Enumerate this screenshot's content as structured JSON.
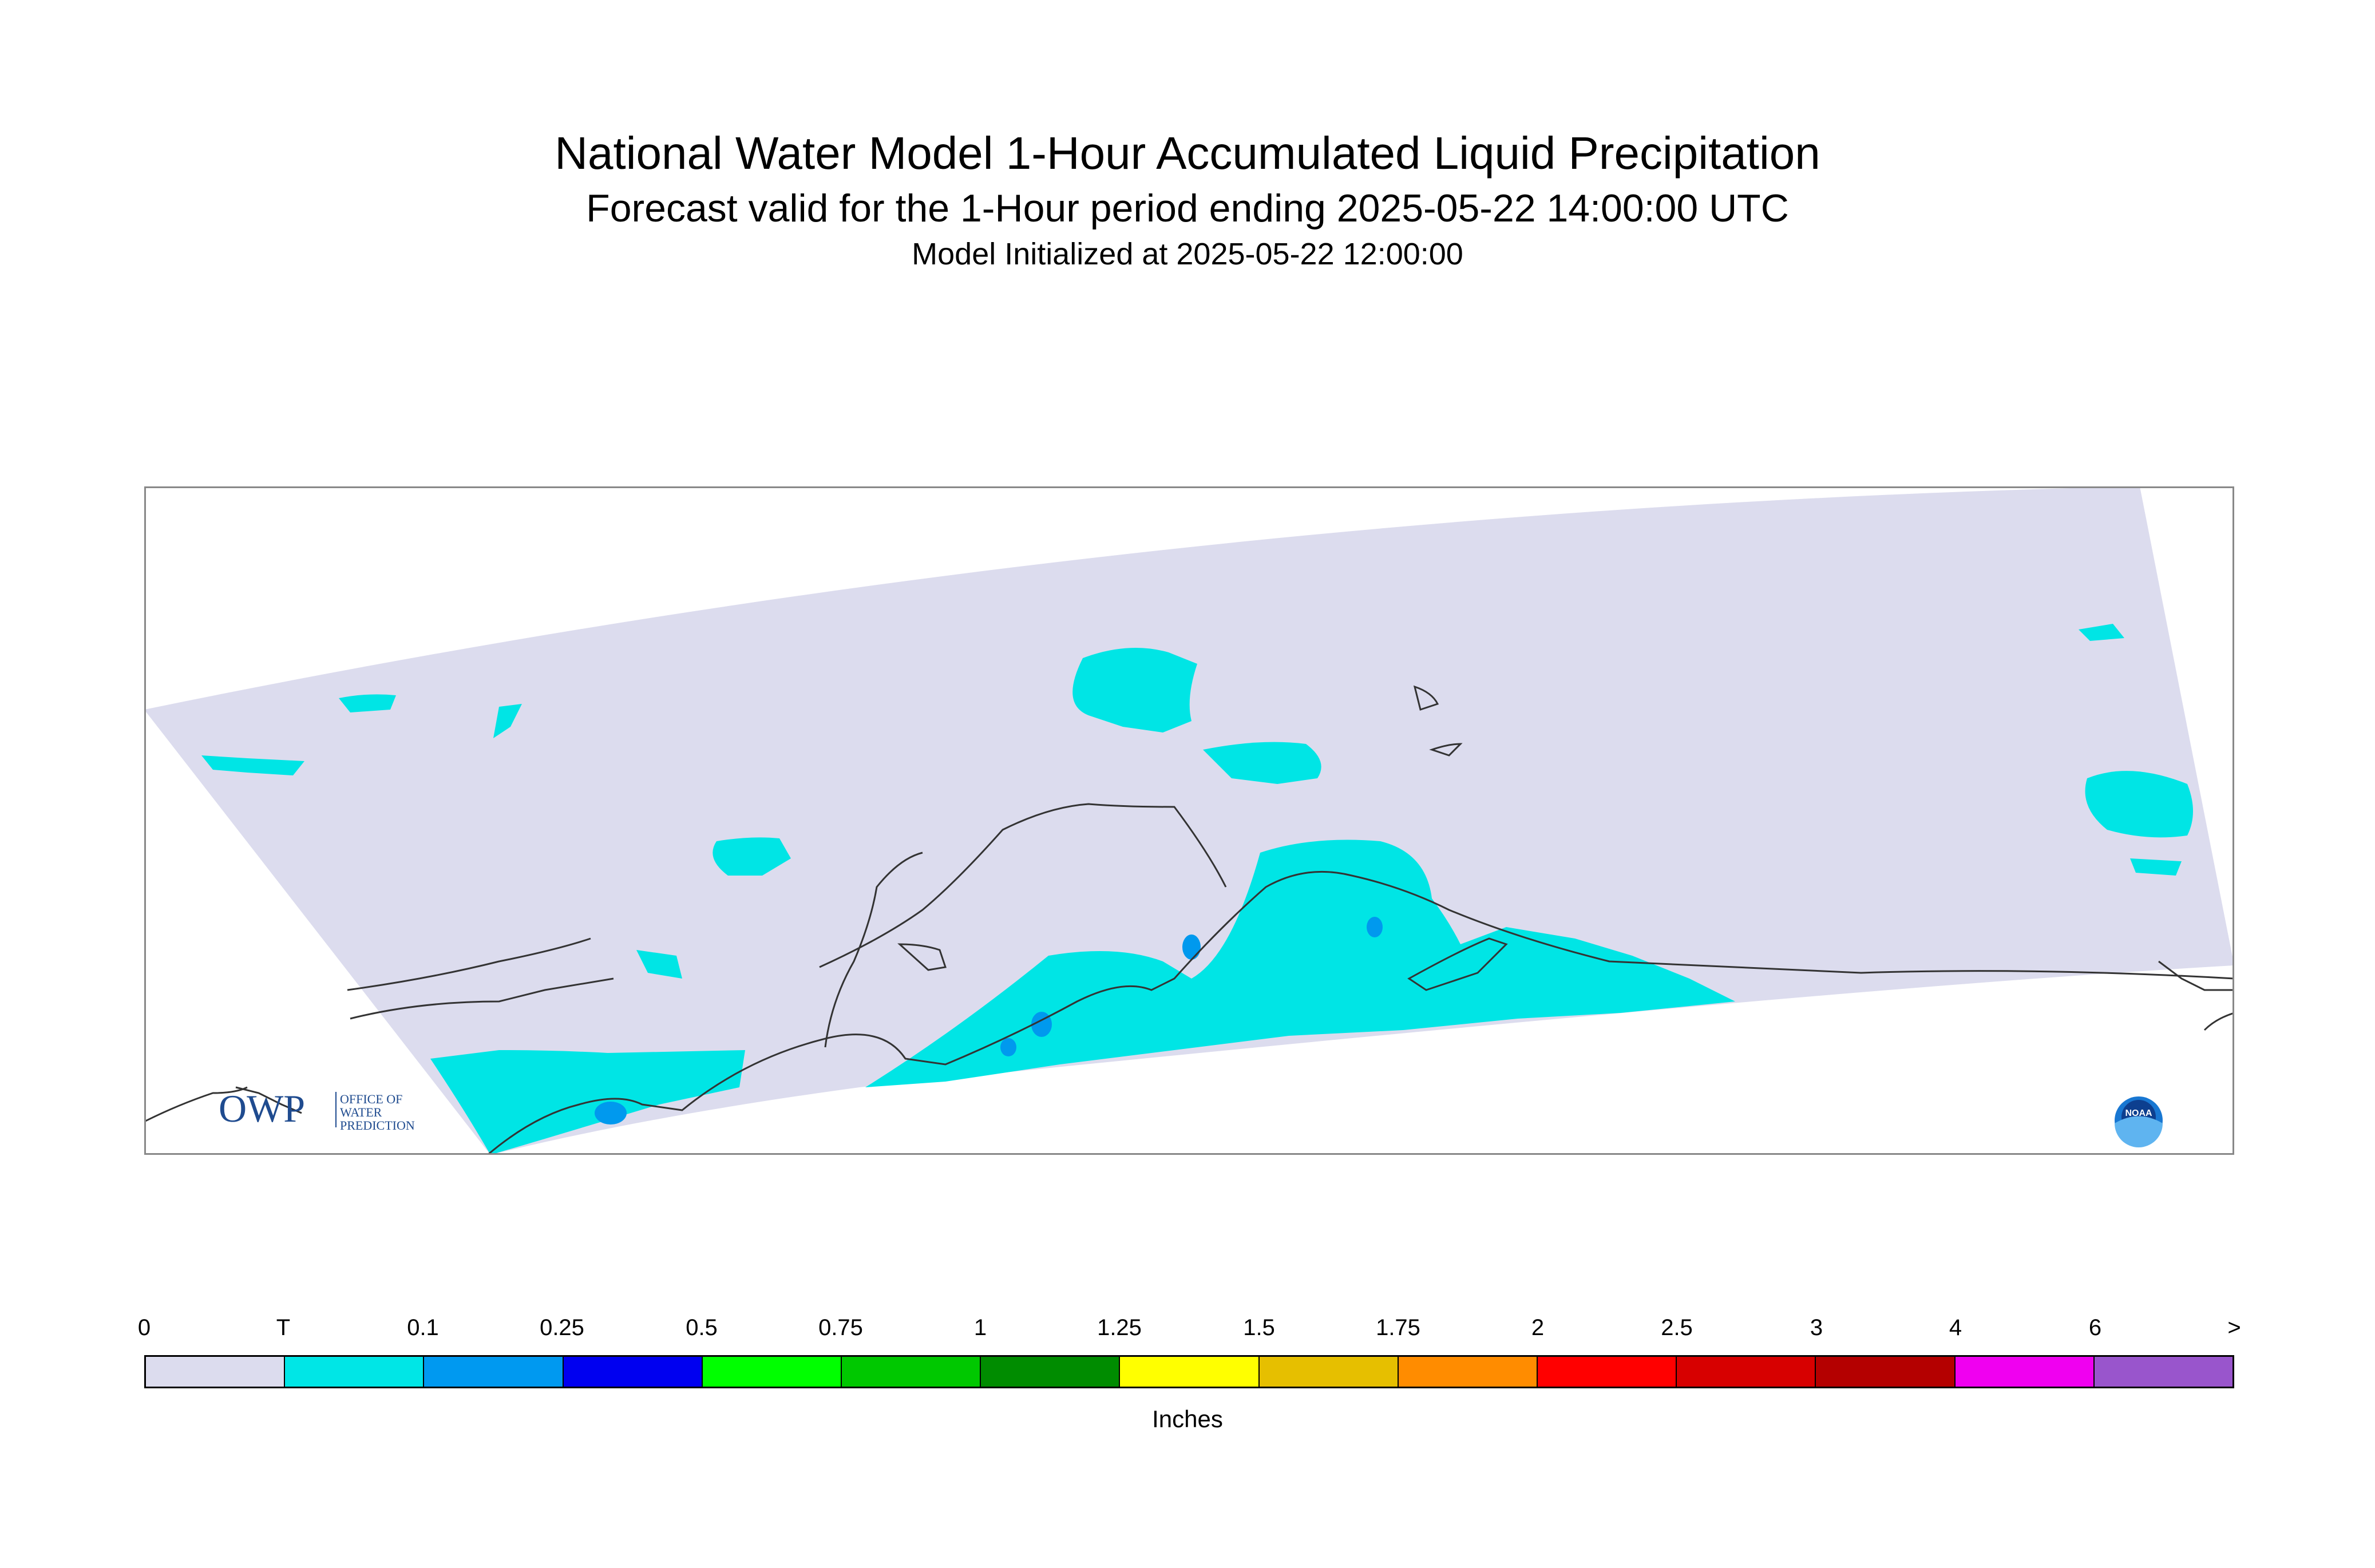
{
  "titles": {
    "main": "National Water Model 1-Hour Accumulated Liquid Precipitation",
    "sub": "Forecast valid for the 1-Hour period ending 2025-05-22 14:00:00 UTC",
    "init": "Model Initialized at 2025-05-22 12:00:00"
  },
  "map": {
    "region_fill": "#dcdcee",
    "precip_colors": {
      "trace": "#00e5e5",
      "light": "#0099ee"
    },
    "coastline_color": "#333333",
    "logos": {
      "owp_text": "OWP",
      "owp_sub": [
        "OFFICE OF",
        "WATER",
        "PREDICTION"
      ],
      "noaa_text": "NOAA"
    }
  },
  "legend": {
    "labels": [
      "0",
      "T",
      "0.1",
      "0.25",
      "0.5",
      "0.75",
      "1",
      "1.25",
      "1.5",
      "1.75",
      "2",
      "2.5",
      "3",
      "4",
      "6",
      ">"
    ],
    "colors": [
      "#dcdcee",
      "#00e6e6",
      "#0099f0",
      "#0000f0",
      "#00ff00",
      "#00c800",
      "#008c00",
      "#ffff00",
      "#e6bf00",
      "#ff8c00",
      "#ff0000",
      "#d70000",
      "#b40000",
      "#f000f0",
      "#9955cc"
    ],
    "units": "Inches"
  }
}
